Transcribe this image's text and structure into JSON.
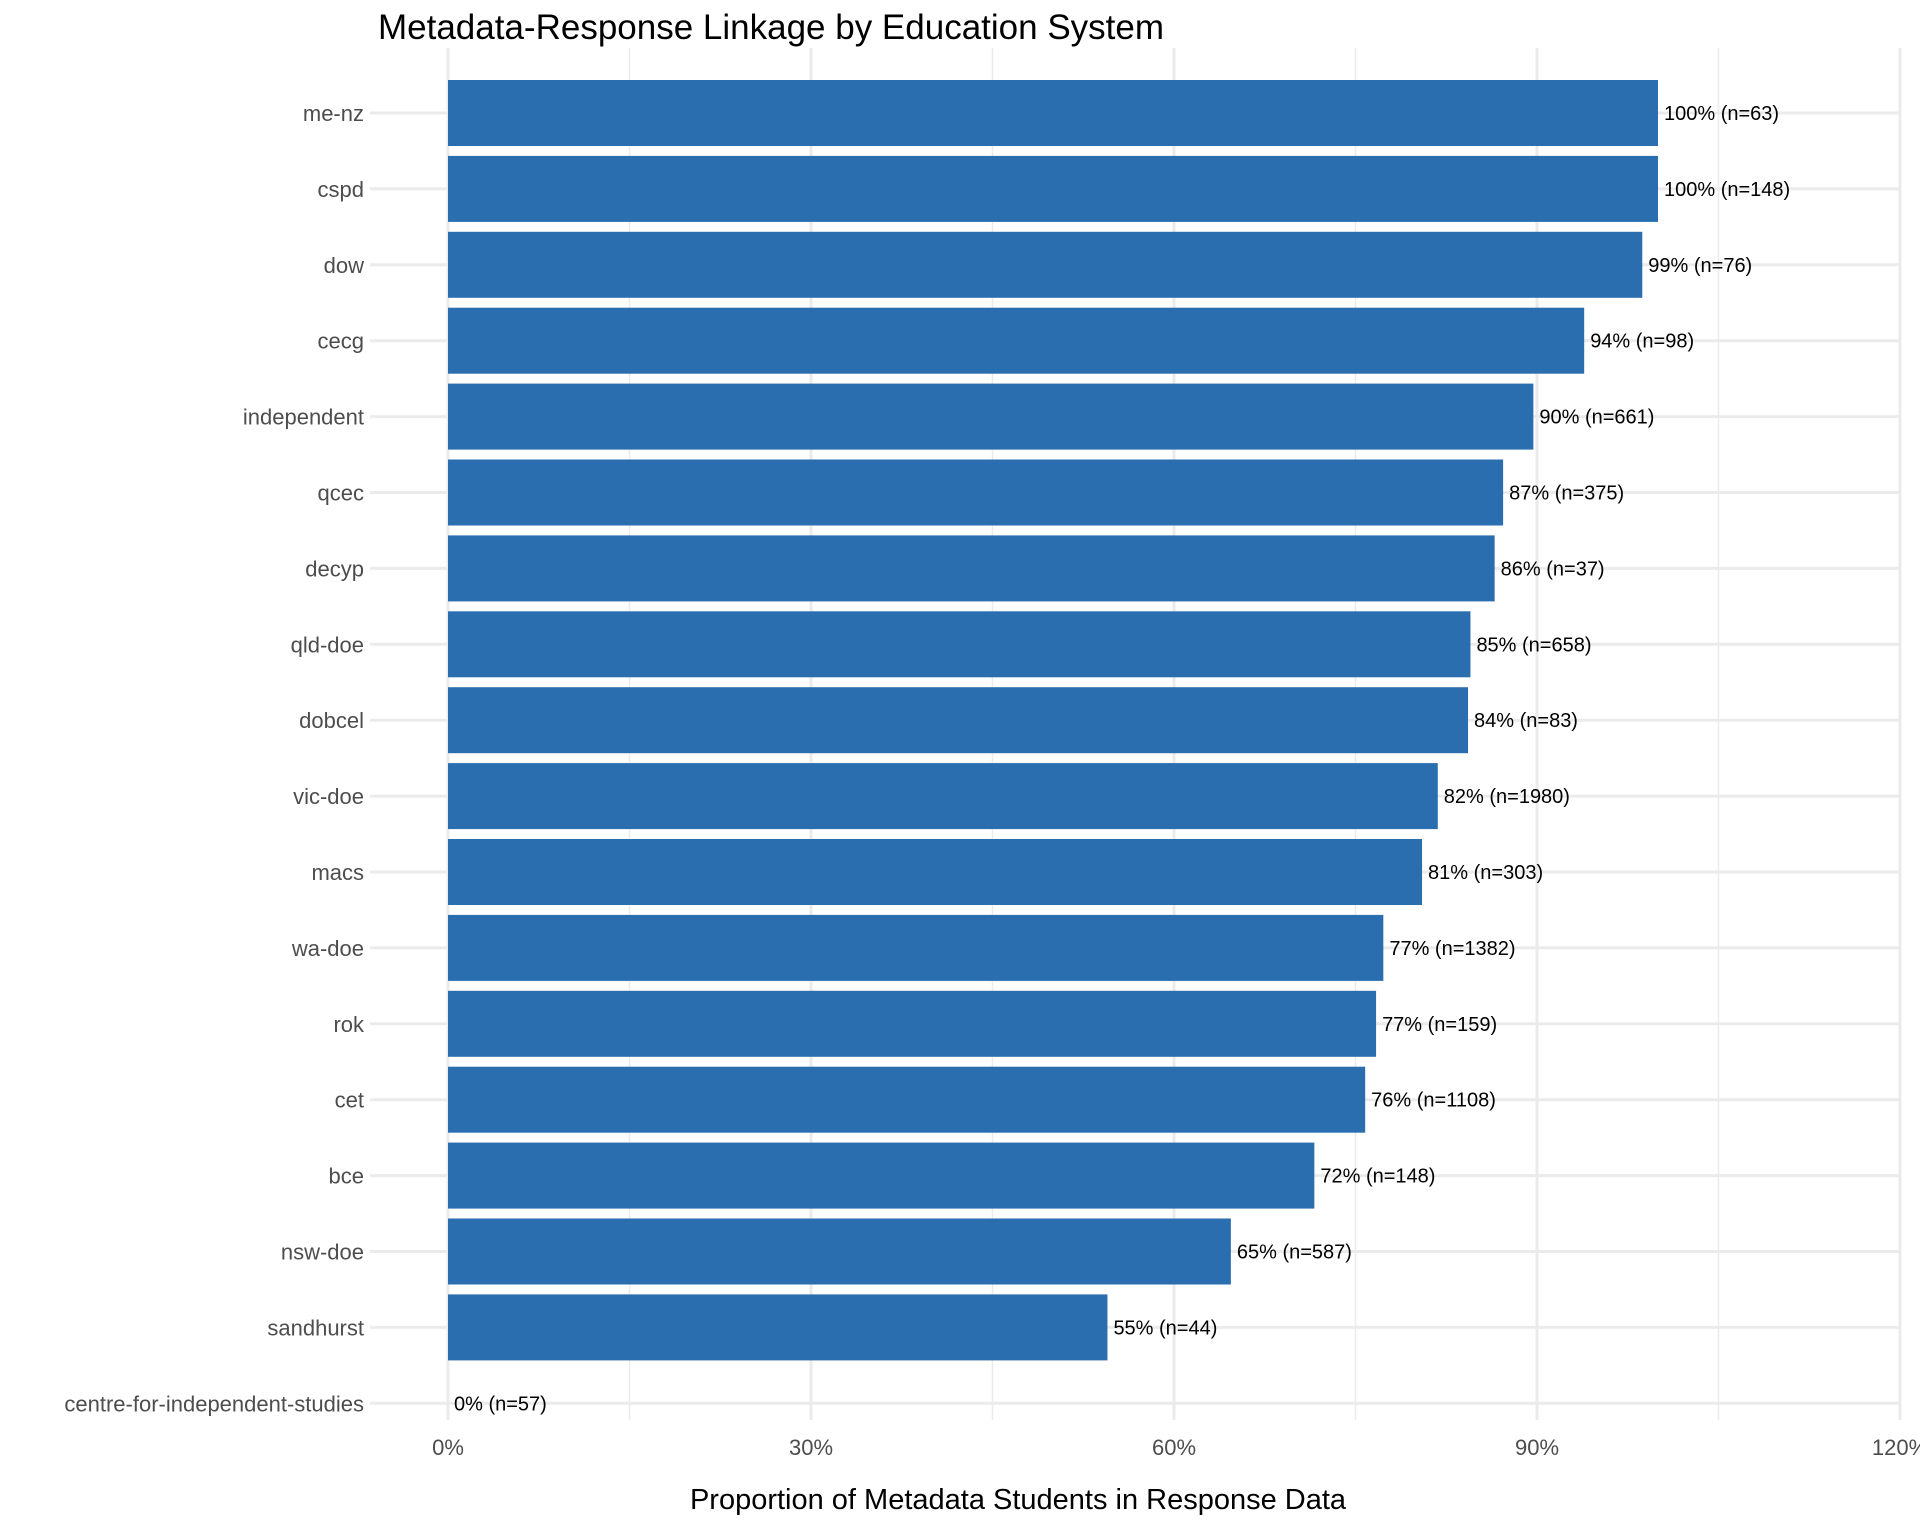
{
  "chart_data": {
    "type": "bar",
    "orientation": "horizontal",
    "title": "Metadata-Response Linkage by Education System",
    "xlabel": "Proportion of Metadata Students in Response Data",
    "ylabel": "",
    "xlim": [
      0,
      1.2
    ],
    "x_ticks": [
      {
        "value": 0,
        "label": "0%"
      },
      {
        "value": 0.3,
        "label": "30%"
      },
      {
        "value": 0.6,
        "label": "60%"
      },
      {
        "value": 0.9,
        "label": "90%"
      },
      {
        "value": 1.2,
        "label": "120%"
      }
    ],
    "grid": true,
    "bar_color": "#2A6EB0",
    "categories": [
      "me-nz",
      "cspd",
      "dow",
      "cecg",
      "independent",
      "qcec",
      "decyp",
      "qld-doe",
      "dobcel",
      "vic-doe",
      "macs",
      "wa-doe",
      "rok",
      "cet",
      "bce",
      "nsw-doe",
      "sandhurst",
      "centre-for-independent-studies"
    ],
    "values": [
      1.0,
      1.0,
      0.987,
      0.939,
      0.897,
      0.872,
      0.865,
      0.845,
      0.843,
      0.818,
      0.805,
      0.773,
      0.767,
      0.758,
      0.716,
      0.647,
      0.545,
      0.0
    ],
    "data_labels": [
      "100% (n=63)",
      "100% (n=148)",
      "99% (n=76)",
      "94% (n=98)",
      "90% (n=661)",
      "87% (n=375)",
      "86% (n=37)",
      "85% (n=658)",
      "84% (n=83)",
      "82% (n=1980)",
      "81% (n=303)",
      "77% (n=1382)",
      "77% (n=159)",
      "76% (n=1108)",
      "72% (n=148)",
      "65% (n=587)",
      "55% (n=44)",
      "0% (n=57)"
    ]
  }
}
